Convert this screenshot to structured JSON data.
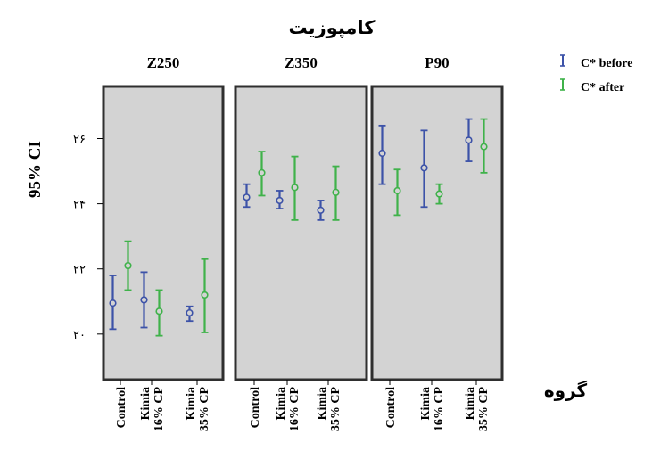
{
  "chart_data": {
    "type": "errorbar",
    "title": "کامپوزیت",
    "ylabel": "95% CI",
    "xlabel": "گروه",
    "ylim": [
      18.6,
      27.6
    ],
    "yticks": [
      {
        "value": 20,
        "label": "۲۰"
      },
      {
        "value": 22,
        "label": "۲۲"
      },
      {
        "value": 24,
        "label": "۲۴"
      },
      {
        "value": 26,
        "label": "۲۶"
      }
    ],
    "panels": [
      "Z250",
      "Z350",
      "P90"
    ],
    "categories": [
      {
        "line1": "Control",
        "line2": ""
      },
      {
        "line1": "Kimia",
        "line2": "16% CP"
      },
      {
        "line1": "Kimia",
        "line2": "35% CP"
      }
    ],
    "series": [
      {
        "name": "C* before",
        "color": "#3c52a8",
        "values": [
          [
            {
              "mean": 20.95,
              "low": 20.15,
              "high": 21.8
            },
            {
              "mean": 21.05,
              "low": 20.2,
              "high": 21.9
            },
            {
              "mean": 20.65,
              "low": 20.4,
              "high": 20.85
            }
          ],
          [
            {
              "mean": 24.2,
              "low": 23.9,
              "high": 24.6
            },
            {
              "mean": 24.1,
              "low": 23.85,
              "high": 24.4
            },
            {
              "mean": 23.8,
              "low": 23.5,
              "high": 24.1
            }
          ],
          [
            {
              "mean": 25.55,
              "low": 24.6,
              "high": 26.4
            },
            {
              "mean": 25.1,
              "low": 23.9,
              "high": 26.25
            },
            {
              "mean": 25.95,
              "low": 25.3,
              "high": 26.6
            }
          ]
        ]
      },
      {
        "name": "C* after",
        "color": "#3fb24a",
        "values": [
          [
            {
              "mean": 22.1,
              "low": 21.35,
              "high": 22.85
            },
            {
              "mean": 20.7,
              "low": 19.95,
              "high": 21.35
            },
            {
              "mean": 21.2,
              "low": 20.05,
              "high": 22.3
            }
          ],
          [
            {
              "mean": 24.95,
              "low": 24.25,
              "high": 25.6
            },
            {
              "mean": 24.5,
              "low": 23.5,
              "high": 25.45
            },
            {
              "mean": 24.35,
              "low": 23.5,
              "high": 25.15
            }
          ],
          [
            {
              "mean": 24.4,
              "low": 23.65,
              "high": 25.05
            },
            {
              "mean": 24.3,
              "low": 24.0,
              "high": 24.6
            },
            {
              "mean": 25.75,
              "low": 24.95,
              "high": 26.6
            }
          ]
        ]
      }
    ],
    "grid": false,
    "legend": "top-right"
  },
  "colors": {
    "panel_bg": "#d3d3d3",
    "panel_border": "#2f2f2f"
  }
}
